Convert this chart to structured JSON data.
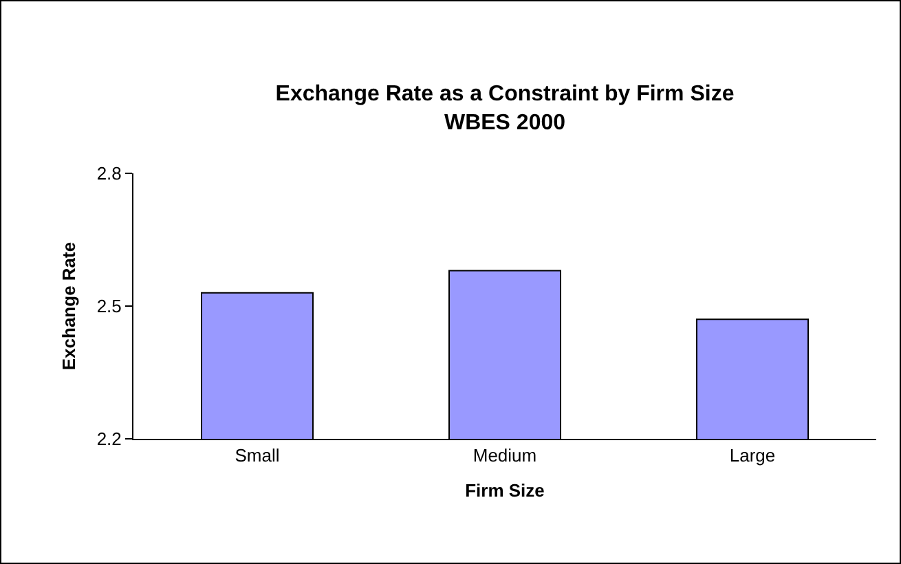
{
  "chart_data": {
    "type": "bar",
    "title": "Exchange Rate as a Constraint by Firm Size",
    "subtitle": "WBES 2000",
    "xlabel": "Firm Size",
    "ylabel": "Exchange Rate",
    "categories": [
      "Small",
      "Medium",
      "Large"
    ],
    "series": [
      {
        "color": "#9999ff",
        "values": [
          2.53,
          2.58,
          2.47
        ]
      }
    ],
    "ylim": [
      2.2,
      2.8
    ],
    "yticks": [
      2.2,
      2.5,
      2.8
    ],
    "grid": false,
    "legend": false
  }
}
